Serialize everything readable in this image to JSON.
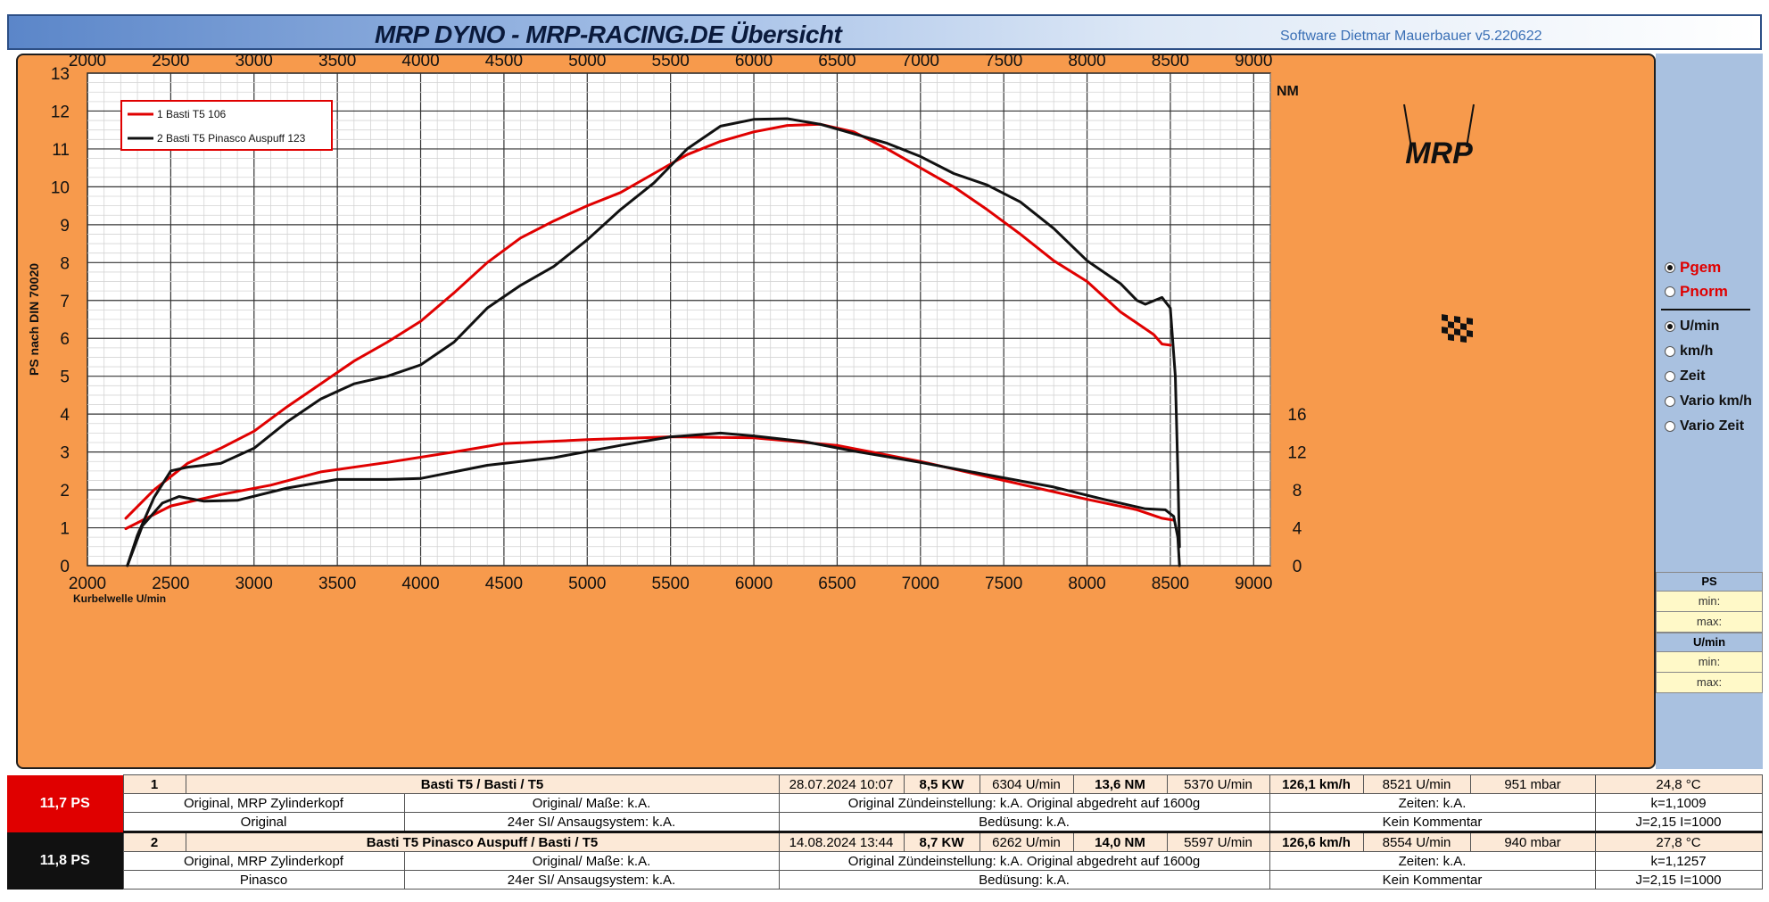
{
  "app": {
    "title": "MRP DYNO - MRP-RACING.DE  Übersicht",
    "software_version": "Software Dietmar Mauerbauer v5.220622"
  },
  "chart_data": {
    "type": "line",
    "x_ticks": [
      2000,
      2500,
      3000,
      3500,
      4000,
      4500,
      5000,
      5500,
      6000,
      6500,
      7000,
      7500,
      8000,
      8500,
      9000
    ],
    "y_ticks": [
      0,
      1,
      2,
      3,
      4,
      5,
      6,
      7,
      8,
      9,
      10,
      11,
      12,
      13
    ],
    "y2_ticks": [
      0,
      4,
      8,
      12,
      16
    ],
    "xlim": [
      2000,
      9100
    ],
    "ylim": [
      0,
      13
    ],
    "y2lim": [
      0,
      52
    ],
    "xlabel": "Kurbelwelle U/min",
    "ylabel": "PS nach DIN 70020",
    "y2label": "NM",
    "grid": true,
    "legend_position": "top-left",
    "series": [
      {
        "name": "1  Basti T5 106",
        "color": "#e00000",
        "power": {
          "x": [
            2230,
            2400,
            2600,
            2800,
            3000,
            3200,
            3400,
            3600,
            3800,
            4000,
            4200,
            4400,
            4600,
            4800,
            5000,
            5200,
            5400,
            5600,
            5800,
            6000,
            6200,
            6400,
            6600,
            6800,
            7000,
            7200,
            7400,
            7600,
            7800,
            8000,
            8200,
            8400,
            8450,
            8500
          ],
          "y": [
            1.25,
            2.0,
            2.7,
            3.1,
            3.55,
            4.2,
            4.8,
            5.4,
            5.9,
            6.45,
            7.2,
            8.0,
            8.65,
            9.1,
            9.5,
            9.85,
            10.35,
            10.85,
            11.2,
            11.45,
            11.62,
            11.65,
            11.45,
            11.0,
            10.5,
            10.0,
            9.4,
            8.75,
            8.05,
            7.5,
            6.7,
            6.1,
            5.85,
            5.82
          ]
        },
        "torque": {
          "x": [
            2230,
            2500,
            2800,
            3100,
            3400,
            3800,
            4200,
            4500,
            5000,
            5500,
            6000,
            6500,
            7000,
            7500,
            8000,
            8300,
            8450,
            8520
          ],
          "y": [
            3.9,
            6.3,
            7.5,
            8.5,
            9.9,
            10.9,
            12.0,
            12.9,
            13.3,
            13.6,
            13.5,
            12.7,
            11.0,
            9.0,
            7.0,
            5.9,
            5.0,
            4.8
          ]
        }
      },
      {
        "name": "2  Basti T5 Pinasco Auspuff 123",
        "color": "#111111",
        "power": {
          "x": [
            2240,
            2300,
            2400,
            2500,
            2600,
            2800,
            3000,
            3200,
            3400,
            3600,
            3800,
            4000,
            4200,
            4400,
            4600,
            4800,
            5000,
            5200,
            5400,
            5600,
            5800,
            6000,
            6200,
            6400,
            6600,
            6800,
            7000,
            7200,
            7400,
            7600,
            7800,
            8000,
            8200,
            8300,
            8350,
            8450,
            8500,
            8530,
            8545,
            8555
          ],
          "y": [
            0.0,
            0.8,
            1.8,
            2.5,
            2.6,
            2.7,
            3.1,
            3.8,
            4.4,
            4.8,
            5.0,
            5.3,
            5.9,
            6.8,
            7.4,
            7.9,
            8.6,
            9.4,
            10.1,
            11.0,
            11.6,
            11.78,
            11.8,
            11.65,
            11.4,
            11.15,
            10.8,
            10.35,
            10.05,
            9.6,
            8.9,
            8.05,
            7.45,
            7.0,
            6.9,
            7.08,
            6.8,
            5.0,
            2.5,
            0.5
          ]
        },
        "torque": {
          "x": [
            2240,
            2330,
            2450,
            2550,
            2700,
            2900,
            3200,
            3500,
            3800,
            4000,
            4400,
            4800,
            5200,
            5500,
            5800,
            6000,
            6300,
            6600,
            7000,
            7400,
            7800,
            8100,
            8350,
            8470,
            8520,
            8545,
            8555
          ],
          "y": [
            0.0,
            4.2,
            6.6,
            7.3,
            6.8,
            6.9,
            8.2,
            9.1,
            9.1,
            9.2,
            10.6,
            11.4,
            12.7,
            13.6,
            14.0,
            13.7,
            13.1,
            12.1,
            10.9,
            9.6,
            8.3,
            7.0,
            6.0,
            5.9,
            5.2,
            3.0,
            0.0
          ]
        }
      }
    ]
  },
  "controls": {
    "power_options": [
      {
        "label": "Pgem",
        "selected": true
      },
      {
        "label": "Pnorm",
        "selected": false
      }
    ],
    "axis_options": [
      {
        "label": "U/min",
        "selected": true
      },
      {
        "label": "km/h",
        "selected": false
      },
      {
        "label": "Zeit",
        "selected": false
      },
      {
        "label": "Vario km/h",
        "selected": false
      },
      {
        "label": "Vario Zeit",
        "selected": false
      }
    ]
  },
  "minmax": {
    "ps_header": "PS",
    "rpm_header": "U/min",
    "min_label": "min:",
    "max_label": "max:"
  },
  "runs": [
    {
      "ps": "11,7  PS",
      "index": "1",
      "name": "Basti T5 / Basti / T5",
      "date": "28.07.2024 10:07",
      "kw": "8,5  KW",
      "kw_rpm": "6304  U/min",
      "nm": "13,6  NM",
      "nm_rpm": "5370  U/min",
      "speed": "126,1 km/h",
      "speed_rpm": "8521  U/min",
      "pressure": "951  mbar",
      "temp": "24,8 °C",
      "head": "Original, MRP Zylinderkopf",
      "dims": "Original/ Maße: k.A.",
      "ignition": "Original  Zündeinstellung: k.A. Original abgedreht auf 1600g",
      "times": "Zeiten: k.A.",
      "k": "k=1,1009",
      "exhaust": "Original",
      "carb": "24er SI/ Ansaugsystem: k.A.",
      "jets": "Bedüsung: k.A.",
      "comment": "Kein Kommentar",
      "ji": "J=2,15 I=1000"
    },
    {
      "ps": "11,8  PS",
      "index": "2",
      "name": "Basti T5 Pinasco Auspuff / Basti / T5",
      "date": "14.08.2024 13:44",
      "kw": "8,7  KW",
      "kw_rpm": "6262  U/min",
      "nm": "14,0  NM",
      "nm_rpm": "5597  U/min",
      "speed": "126,6 km/h",
      "speed_rpm": "8554  U/min",
      "pressure": "940  mbar",
      "temp": "27,8 °C",
      "head": "Original, MRP Zylinderkopf",
      "dims": "Original/ Maße: k.A.",
      "ignition": "Original  Zündeinstellung: k.A. Original abgedreht auf 1600g",
      "times": "Zeiten: k.A.",
      "k": "k=1,1257",
      "exhaust": "Pinasco",
      "carb": "24er SI/ Ansaugsystem: k.A.",
      "jets": "Bedüsung: k.A.",
      "comment": "Kein Kommentar",
      "ji": "J=2,15 I=1000"
    }
  ],
  "logo": {
    "text": "MRP"
  }
}
